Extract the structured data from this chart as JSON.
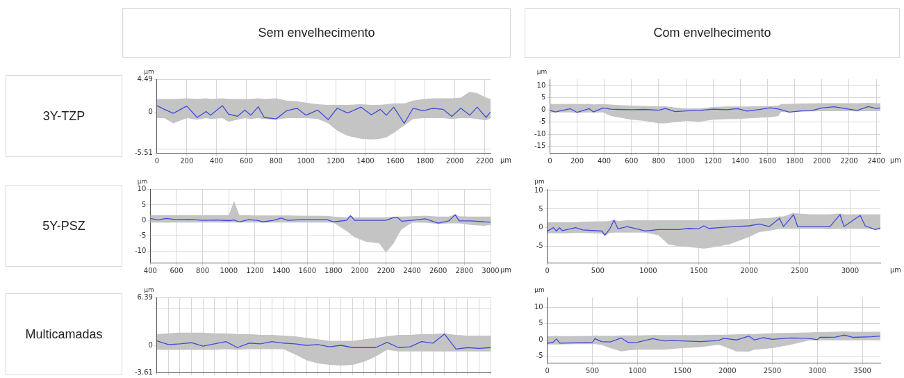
{
  "chart_data": [
    {
      "type": "line",
      "title": "Sem envelhecimento",
      "annotations": [
        "3Y-TZP"
      ],
      "xlabel": "µm",
      "ylabel": "µm",
      "grid": true,
      "xlim": [
        0,
        2240
      ],
      "xticks": [
        0,
        200,
        400,
        600,
        800,
        1000,
        1200,
        1400,
        1600,
        1800,
        2000,
        2200
      ],
      "ylim": [
        -5.51,
        4.49
      ],
      "yticks": [
        -5.51,
        {
          "value": -5,
          "label": null
        },
        0,
        4.49
      ],
      "series": [
        {
          "color": "#3c4bdc",
          "x": [
            0,
            50,
            110,
            200,
            270,
            330,
            360,
            440,
            480,
            540,
            590,
            630,
            680,
            720,
            800,
            870,
            940,
            1000,
            1080,
            1150,
            1210,
            1280,
            1370,
            1440,
            1500,
            1540,
            1590,
            1660,
            1720,
            1790,
            1850,
            1920,
            1980,
            2040,
            2100,
            2150,
            2210,
            2240
          ],
          "values": [
            0.9,
            0.4,
            -0.15,
            0.85,
            -0.7,
            0.1,
            -0.4,
            0.9,
            -0.25,
            -0.55,
            0.3,
            -0.4,
            0.75,
            -0.7,
            -0.9,
            0.2,
            0.55,
            -0.4,
            0.3,
            -1.0,
            0.55,
            -0.1,
            0.7,
            -0.35,
            0.4,
            -0.4,
            0.7,
            -1.5,
            0.55,
            0.2,
            0.55,
            0.4,
            -0.55,
            0.55,
            -0.4,
            0.7,
            -0.7,
            0.05
          ],
          "upper": [
            1.8,
            1.8,
            1.8,
            1.9,
            1.8,
            1.9,
            1.8,
            1.9,
            1.8,
            1.8,
            1.8,
            1.8,
            1.9,
            1.8,
            1.9,
            1.6,
            1.5,
            1.3,
            1.1,
            1.0,
            1.0,
            1.0,
            1.1,
            1.0,
            1.0,
            1.1,
            1.2,
            1.2,
            1.6,
            1.8,
            1.9,
            1.9,
            1.9,
            2.0,
            2.8,
            2.6,
            2.0,
            1.8
          ],
          "lower": [
            -0.8,
            -0.8,
            -1.5,
            -0.8,
            -1.0,
            -0.8,
            -0.9,
            -0.8,
            -1.3,
            -1.0,
            -0.8,
            -0.9,
            -0.8,
            -0.9,
            -1.0,
            -0.8,
            -0.8,
            -0.8,
            -0.9,
            -1.5,
            -2.5,
            -3.2,
            -3.6,
            -3.7,
            -3.6,
            -3.4,
            -2.8,
            -1.8,
            -0.9,
            -0.8,
            -0.8,
            -0.8,
            -0.9,
            -0.8,
            -0.8,
            -0.9,
            -1.1,
            -0.8
          ]
        }
      ]
    },
    {
      "type": "line",
      "title": "Com envelhecimento",
      "xlabel": "µm",
      "ylabel": "µm",
      "grid": true,
      "xlim": [
        0,
        2430
      ],
      "xticks": [
        0,
        200,
        400,
        600,
        800,
        1000,
        1200,
        1400,
        1600,
        1800,
        2000,
        2200,
        2400
      ],
      "ylim": [
        -17.6,
        12.6
      ],
      "yticks": [
        -15,
        -10,
        -5,
        0,
        5,
        10
      ],
      "series": [
        {
          "color": "#3c4bdc",
          "x": [
            0,
            40,
            150,
            200,
            290,
            320,
            390,
            450,
            500,
            600,
            700,
            800,
            850,
            920,
            1000,
            1100,
            1200,
            1300,
            1380,
            1450,
            1540,
            1620,
            1680,
            1700,
            1760,
            1850,
            1920,
            2000,
            2090,
            2200,
            2260,
            2340,
            2400,
            2430
          ],
          "values": [
            -0.2,
            -0.8,
            0.5,
            -1.0,
            0.5,
            -0.8,
            0.8,
            0.3,
            0.2,
            0.1,
            0.2,
            -0.1,
            0.6,
            -0.7,
            -0.4,
            -0.2,
            0.3,
            0.1,
            0.5,
            -0.5,
            0.2,
            0.9,
            0.4,
            0.1,
            -0.9,
            -0.4,
            -0.3,
            0.8,
            1.3,
            0.3,
            -0.2,
            1.4,
            0.6,
            0.8
          ],
          "upper": [
            2.4,
            2.4,
            2.5,
            2.4,
            2.5,
            2.3,
            2.4,
            2.2,
            2.0,
            1.8,
            1.6,
            1.5,
            1.5,
            1.0,
            0.6,
            0.6,
            1.2,
            1.4,
            1.4,
            1.4,
            1.5,
            1.6,
            1.8,
            2.4,
            2.5,
            2.6,
            2.7,
            2.8,
            2.8,
            2.8,
            2.8,
            2.9,
            2.8,
            2.8
          ],
          "lower": [
            -1.0,
            -1.0,
            -1.0,
            -1.2,
            -1.0,
            -1.1,
            -1.0,
            -2.5,
            -3.0,
            -4.0,
            -4.5,
            -5.5,
            -5.5,
            -5.0,
            -4.5,
            -4.8,
            -4.0,
            -3.8,
            -3.7,
            -3.5,
            -3.2,
            -3.0,
            -2.5,
            -0.8,
            -1.0,
            -0.6,
            -0.6,
            -0.5,
            -0.5,
            -0.5,
            -0.6,
            -0.5,
            -0.5,
            -0.5
          ]
        }
      ]
    },
    {
      "type": "line",
      "annotations": [
        "5Y-PSZ"
      ],
      "xlabel": "µm",
      "ylabel": "µm",
      "grid": true,
      "xlim": [
        400,
        3000
      ],
      "xticks": [
        400,
        600,
        800,
        1000,
        1200,
        1400,
        1600,
        1800,
        2000,
        2200,
        2400,
        2600,
        2800,
        3000
      ],
      "ylim": [
        -13.8,
        10.2
      ],
      "yticks": [
        -10,
        -5,
        0,
        5,
        10
      ],
      "series": [
        {
          "color": "#3c4bdc",
          "x": [
            400,
            460,
            520,
            600,
            700,
            800,
            900,
            1000,
            1040,
            1080,
            1150,
            1220,
            1260,
            1340,
            1400,
            1450,
            1550,
            1650,
            1750,
            1800,
            1900,
            1930,
            1960,
            2050,
            2150,
            2200,
            2260,
            2290,
            2320,
            2400,
            2500,
            2600,
            2680,
            2730,
            2760,
            2850,
            2950,
            3000
          ],
          "values": [
            0.6,
            0.1,
            0.6,
            0.2,
            0.3,
            0.0,
            0.1,
            -0.1,
            0.1,
            -0.5,
            0.2,
            0.0,
            -0.5,
            0.0,
            0.7,
            0.0,
            0.2,
            0.2,
            0.2,
            -0.5,
            0.0,
            1.5,
            0.0,
            0.0,
            0.0,
            0.0,
            0.9,
            0.9,
            -0.3,
            0.0,
            0.5,
            -0.9,
            -0.2,
            1.8,
            -0.2,
            -0.2,
            -0.5,
            -0.6
          ],
          "upper": [
            1.7,
            1.7,
            1.7,
            1.7,
            1.7,
            1.7,
            1.7,
            1.7,
            6.3,
            1.7,
            1.7,
            1.6,
            1.6,
            1.6,
            1.6,
            1.6,
            1.5,
            1.5,
            1.4,
            1.2,
            1.0,
            1.5,
            1.0,
            1.0,
            1.0,
            1.0,
            1.2,
            1.2,
            1.2,
            1.3,
            1.5,
            1.2,
            1.2,
            2.0,
            1.3,
            1.2,
            1.2,
            1.2
          ],
          "lower": [
            -0.7,
            -0.7,
            -0.8,
            -0.7,
            -0.7,
            -0.7,
            -0.7,
            -0.7,
            -0.7,
            -0.7,
            -0.7,
            -0.7,
            -0.8,
            -0.7,
            -0.7,
            -0.7,
            -0.7,
            -0.7,
            -0.7,
            -0.8,
            -3.5,
            -4.5,
            -5.5,
            -7.0,
            -7.5,
            -10.5,
            -7.5,
            -5.0,
            -3.0,
            -0.7,
            -0.8,
            -1.2,
            -1.0,
            -1.0,
            -1.0,
            -1.5,
            -1.8,
            -1.5
          ]
        }
      ]
    },
    {
      "type": "line",
      "xlabel": "µm",
      "ylabel": "µm",
      "grid": true,
      "xlim": [
        0,
        3300
      ],
      "xticks": [
        0,
        500,
        1000,
        1500,
        2000,
        2500,
        3000
      ],
      "ylim": [
        -9.4,
        10.4
      ],
      "yticks": [
        -5,
        0,
        5,
        10
      ],
      "series": [
        {
          "color": "#3c4bdc",
          "x": [
            0,
            60,
            90,
            120,
            150,
            280,
            350,
            540,
            570,
            620,
            660,
            700,
            790,
            900,
            970,
            1100,
            1200,
            1300,
            1400,
            1500,
            1550,
            1600,
            1800,
            2000,
            2100,
            2200,
            2300,
            2340,
            2440,
            2480,
            2600,
            2700,
            2800,
            2900,
            2940,
            3100,
            3150,
            3250,
            3300
          ],
          "values": [
            -0.9,
            0.0,
            -0.9,
            0.0,
            -0.8,
            0.0,
            -0.6,
            -0.9,
            -2.0,
            -0.3,
            2.0,
            -0.3,
            0.3,
            -0.4,
            -0.9,
            -0.5,
            -0.5,
            -0.5,
            -0.2,
            -0.3,
            0.5,
            -0.2,
            0.2,
            0.5,
            1.0,
            0.3,
            2.5,
            0.3,
            3.5,
            0.3,
            0.3,
            0.3,
            0.3,
            3.5,
            0.3,
            3.3,
            0.5,
            -0.5,
            -0.1
          ],
          "upper": [
            1.5,
            1.5,
            1.5,
            1.5,
            1.5,
            1.5,
            1.6,
            1.7,
            1.7,
            1.8,
            2.2,
            1.8,
            2.0,
            2.0,
            2.0,
            2.0,
            2.0,
            2.0,
            2.0,
            2.0,
            2.0,
            2.0,
            2.2,
            2.3,
            2.5,
            2.6,
            3.0,
            3.0,
            4.0,
            3.8,
            3.6,
            3.6,
            3.6,
            3.8,
            3.6,
            3.6,
            3.6,
            3.6,
            3.6
          ],
          "lower": [
            -1.5,
            -1.5,
            -1.5,
            -1.5,
            -1.5,
            -1.4,
            -1.4,
            -1.6,
            -2.2,
            -1.4,
            -1.3,
            -1.3,
            -1.3,
            -1.3,
            -1.3,
            -2.0,
            -4.5,
            -5.0,
            -5.2,
            -5.5,
            -5.6,
            -5.5,
            -4.5,
            -2.5,
            -1.2,
            -0.8,
            -0.3,
            -0.3,
            -0.3,
            -0.3,
            -0.3,
            -0.3,
            -0.4,
            -0.3,
            -0.3,
            -0.3,
            -0.3,
            -0.5,
            -0.5
          ]
        }
      ]
    },
    {
      "type": "line",
      "annotations": [
        "Multicamadas"
      ],
      "ylabel": "µm",
      "grid": true,
      "tick_labels": "y",
      "categories": [
        null,
        null,
        null,
        null,
        null,
        null,
        null,
        null,
        null,
        null,
        null,
        null,
        null,
        null,
        null,
        null,
        null,
        null,
        null,
        null,
        null,
        null,
        null,
        null,
        null,
        null,
        null,
        null,
        null,
        null
      ],
      "ylim": [
        -3.61,
        6.39
      ],
      "yticks": [
        -3.61,
        0,
        {
          "value": 5,
          "label": null
        },
        6.39
      ],
      "series": [
        {
          "color": "#3c4bdc",
          "values": [
            0.6,
            0.1,
            0.2,
            0.35,
            -0.1,
            0.2,
            0.5,
            -0.3,
            0.3,
            0.2,
            0.5,
            0.3,
            0.2,
            0.0,
            0.1,
            -0.2,
            0.0,
            -0.3,
            -0.3,
            -0.3,
            0.4,
            -0.3,
            -0.2,
            0.5,
            0.3,
            1.5,
            -0.5,
            -0.3,
            -0.4,
            -0.3
          ],
          "upper": [
            1.5,
            1.6,
            1.7,
            1.7,
            1.7,
            1.6,
            1.6,
            1.5,
            1.5,
            1.4,
            1.4,
            1.3,
            1.2,
            1.0,
            0.8,
            0.6,
            0.6,
            0.6,
            0.8,
            1.0,
            1.2,
            1.4,
            1.4,
            1.5,
            1.5,
            1.6,
            1.4,
            1.3,
            1.3,
            1.3
          ],
          "lower": [
            -0.6,
            -0.6,
            -0.6,
            -0.6,
            -0.6,
            -0.6,
            -0.5,
            -0.6,
            -0.5,
            -0.5,
            -0.5,
            -0.5,
            -1.2,
            -2.0,
            -2.4,
            -2.6,
            -2.7,
            -2.6,
            -2.2,
            -1.5,
            -0.6,
            -0.8,
            -0.8,
            -0.8,
            -0.8,
            -0.8,
            -0.8,
            -0.8,
            -0.8,
            -0.8
          ]
        }
      ]
    },
    {
      "type": "line",
      "ylabel": "µm",
      "grid": true,
      "xlim": [
        0,
        3700
      ],
      "xticks": [
        0,
        500,
        1000,
        1500,
        2000,
        2500,
        3000,
        3500
      ],
      "ylim": [
        -7,
        13.1
      ],
      "yticks": [
        -5,
        0,
        5,
        10
      ],
      "series": [
        {
          "color": "#3c4bdc",
          "x": [
            0,
            60,
            100,
            140,
            300,
            500,
            530,
            600,
            700,
            820,
            900,
            1000,
            1170,
            1300,
            1400,
            1500,
            1700,
            1900,
            1960,
            2100,
            2240,
            2300,
            2400,
            2500,
            2700,
            2900,
            3000,
            3030,
            3200,
            3300,
            3400,
            3600,
            3700
          ],
          "values": [
            -1.0,
            -0.8,
            0.3,
            -1.0,
            -0.9,
            -0.7,
            0.4,
            -0.5,
            -0.6,
            0.6,
            -0.8,
            -0.7,
            0.4,
            -0.3,
            -0.2,
            -0.3,
            -0.5,
            -0.2,
            0.5,
            0.0,
            1.2,
            0.0,
            0.7,
            0.2,
            0.6,
            0.5,
            0.1,
            0.8,
            0.9,
            1.5,
            0.8,
            1.0,
            1.2
          ],
          "upper": [
            1.2,
            1.2,
            1.3,
            1.2,
            1.2,
            1.3,
            1.4,
            1.3,
            1.3,
            1.4,
            1.4,
            1.4,
            1.5,
            1.5,
            1.5,
            1.5,
            1.5,
            1.6,
            1.6,
            1.7,
            1.9,
            1.8,
            2.0,
            2.1,
            2.2,
            2.3,
            2.4,
            2.4,
            2.5,
            2.6,
            2.5,
            2.5,
            2.5
          ],
          "lower": [
            -1.4,
            -1.4,
            -1.4,
            -1.4,
            -1.3,
            -1.3,
            -1.3,
            -1.5,
            -2.5,
            -3.5,
            -3.2,
            -3.0,
            -3.0,
            -3.0,
            -2.7,
            -2.5,
            -2.2,
            -1.5,
            -2.0,
            -3.5,
            -3.6,
            -3.0,
            -2.8,
            -2.5,
            -1.5,
            -0.2,
            0.0,
            0.0,
            0.0,
            0.0,
            0.0,
            0.0,
            0.0
          ]
        }
      ]
    }
  ]
}
